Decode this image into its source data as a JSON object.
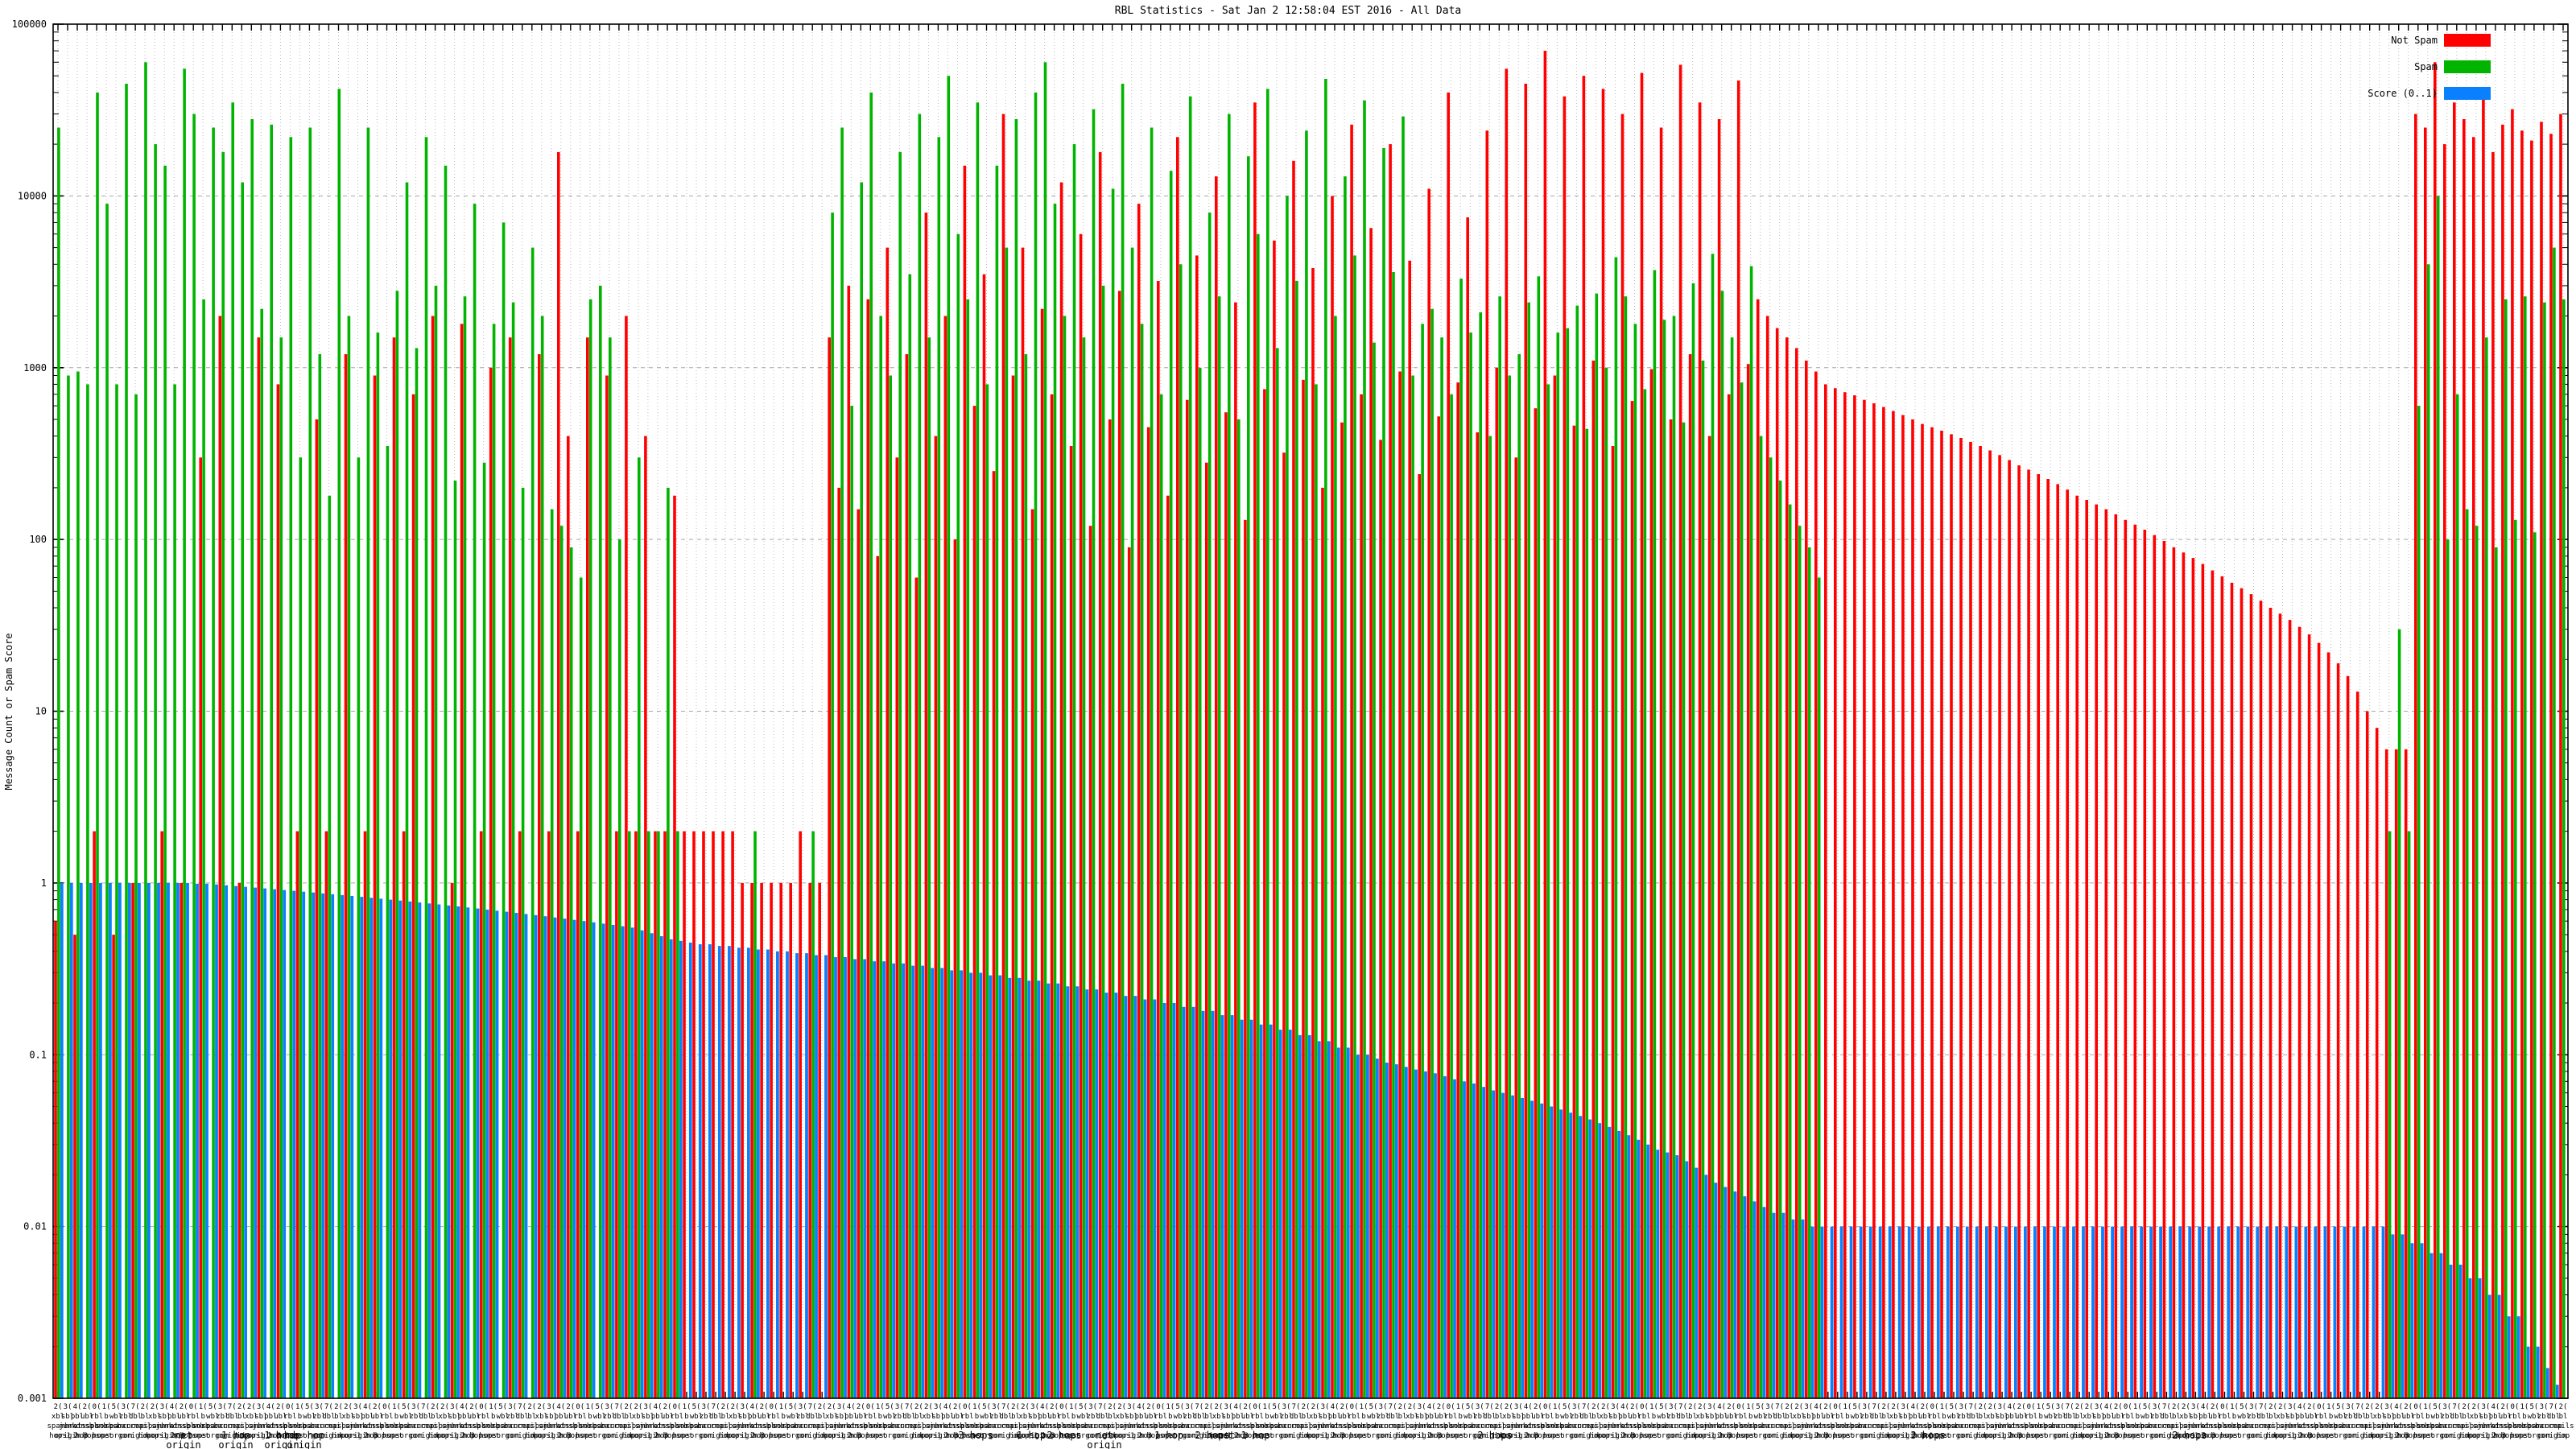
{
  "title": "RBL Statistics - Sat Jan  2 12:58:04 EST 2016 - All Data",
  "y_label": "Message Count or Spam Score",
  "legend": [
    {
      "label": "Not Spam",
      "color": "#ff0000"
    },
    {
      "label": "Spam",
      "color": "#00b400"
    },
    {
      "label": "Score (0..1)",
      "color": "#0a80ff"
    }
  ],
  "colors": {
    "not_spam": "#ff0000",
    "spam": "#00b400",
    "score": "#0a80ff",
    "grid_v": "#bcbcbc",
    "grid_h": "#a8a8a8",
    "border": "#000000"
  },
  "chart_data": {
    "type": "bar",
    "log_scale": true,
    "ylim": [
      0.001,
      100000
    ],
    "series_names": [
      "Not Spam",
      "Spam",
      "Score (0..1)"
    ],
    "y_ticks": [
      {
        "v": 100000,
        "t": "100000"
      },
      {
        "v": 10000,
        "t": "10000"
      },
      {
        "v": 1000,
        "t": "1000"
      },
      {
        "v": 100,
        "t": "100"
      },
      {
        "v": 10,
        "t": "10"
      },
      {
        "v": 1,
        "t": "1"
      },
      {
        "v": 0.1,
        "t": "0.1"
      },
      {
        "v": 0.01,
        "t": "0.01"
      },
      {
        "v": 0.001,
        "t": "0.001"
      }
    ],
    "clusters": [
      [
        0.6,
        25000,
        1
      ],
      [
        0,
        900,
        1
      ],
      [
        0.5,
        950,
        1
      ],
      [
        0,
        800,
        1
      ],
      [
        2,
        40000,
        1
      ],
      [
        0,
        9000,
        1
      ],
      [
        0.5,
        800,
        1
      ],
      [
        0,
        45000,
        1
      ],
      [
        1,
        700,
        1
      ],
      [
        0,
        60000,
        1
      ],
      [
        0,
        20000,
        1
      ],
      [
        2,
        15000,
        1
      ],
      [
        0,
        800,
        1
      ],
      [
        1,
        55000,
        1
      ],
      [
        0,
        30000,
        0.99
      ],
      [
        300,
        2500,
        0.99
      ],
      [
        0,
        25000,
        0.98
      ],
      [
        2000,
        18000,
        0.97
      ],
      [
        0,
        35000,
        0.96
      ],
      [
        1,
        12000,
        0.95
      ],
      [
        0,
        28000,
        0.94
      ],
      [
        1500,
        2200,
        0.93
      ],
      [
        0,
        26000,
        0.92
      ],
      [
        800,
        1500,
        0.91
      ],
      [
        0,
        22000,
        0.9
      ],
      [
        2,
        300,
        0.89
      ],
      [
        0,
        25000,
        0.88
      ],
      [
        500,
        1200,
        0.87
      ],
      [
        2,
        180,
        0.86
      ],
      [
        0,
        42000,
        0.85
      ],
      [
        1200,
        2000,
        0.84
      ],
      [
        0,
        300,
        0.83
      ],
      [
        2,
        25000,
        0.82
      ],
      [
        900,
        1600,
        0.81
      ],
      [
        0,
        350,
        0.8
      ],
      [
        1500,
        2800,
        0.79
      ],
      [
        2,
        12000,
        0.78
      ],
      [
        700,
        1300,
        0.77
      ],
      [
        0,
        22000,
        0.76
      ],
      [
        2000,
        3000,
        0.75
      ],
      [
        0,
        15000,
        0.74
      ],
      [
        1,
        220,
        0.73
      ],
      [
        1800,
        2600,
        0.72
      ],
      [
        0,
        9000,
        0.71
      ],
      [
        2,
        280,
        0.7
      ],
      [
        1000,
        1800,
        0.69
      ],
      [
        0,
        7000,
        0.68
      ],
      [
        1500,
        2400,
        0.67
      ],
      [
        2,
        200,
        0.66
      ],
      [
        0,
        5000,
        0.65
      ],
      [
        1200,
        2000,
        0.64
      ],
      [
        2,
        150,
        0.63
      ],
      [
        18000,
        120,
        0.62
      ],
      [
        400,
        90,
        0.61
      ],
      [
        2,
        60,
        0.6
      ],
      [
        1500,
        2500,
        0.59
      ],
      [
        0,
        3000,
        0.58
      ],
      [
        900,
        1500,
        0.57
      ],
      [
        2,
        100,
        0.56
      ],
      [
        2000,
        2,
        0.55
      ],
      [
        2,
        300,
        0.53
      ],
      [
        400,
        2,
        0.51
      ],
      [
        2,
        2,
        0.49
      ],
      [
        2,
        200,
        0.47
      ],
      [
        180,
        2,
        0.46
      ],
      [
        2,
        0,
        0.45
      ],
      [
        2,
        0,
        0.44
      ],
      [
        2,
        0,
        0.44
      ],
      [
        2,
        0,
        0.43
      ],
      [
        2,
        0,
        0.43
      ],
      [
        2,
        0,
        0.42
      ],
      [
        1,
        0,
        0.42
      ],
      [
        1,
        2,
        0.41
      ],
      [
        1,
        0,
        0.41
      ],
      [
        1,
        0,
        0.4
      ],
      [
        1,
        0,
        0.4
      ],
      [
        1,
        0,
        0.39
      ],
      [
        2,
        0,
        0.39
      ],
      [
        1,
        2,
        0.38
      ],
      [
        1,
        0,
        0.38
      ],
      [
        1500,
        8000,
        0.37
      ],
      [
        200,
        25000,
        0.37
      ],
      [
        3000,
        600,
        0.36
      ],
      [
        150,
        12000,
        0.36
      ],
      [
        2500,
        40000,
        0.35
      ],
      [
        80,
        2000,
        0.35
      ],
      [
        5000,
        900,
        0.34
      ],
      [
        300,
        18000,
        0.34
      ],
      [
        1200,
        3500,
        0.33
      ],
      [
        60,
        30000,
        0.33
      ],
      [
        8000,
        1500,
        0.32
      ],
      [
        400,
        22000,
        0.32
      ],
      [
        2000,
        50000,
        0.31
      ],
      [
        100,
        6000,
        0.31
      ],
      [
        15000,
        2500,
        0.3
      ],
      [
        600,
        35000,
        0.3
      ],
      [
        3500,
        800,
        0.29
      ],
      [
        250,
        15000,
        0.29
      ],
      [
        30000,
        5000,
        0.28
      ],
      [
        900,
        28000,
        0.28
      ],
      [
        5000,
        1200,
        0.27
      ],
      [
        150,
        40000,
        0.27
      ],
      [
        2200,
        60000,
        0.26
      ],
      [
        700,
        9000,
        0.26
      ],
      [
        12000,
        2000,
        0.25
      ],
      [
        350,
        20000,
        0.25
      ],
      [
        6000,
        1500,
        0.24
      ],
      [
        120,
        32000,
        0.24
      ],
      [
        18000,
        3000,
        0.23
      ],
      [
        500,
        11000,
        0.23
      ],
      [
        2800,
        45000,
        0.22
      ],
      [
        90,
        5000,
        0.22
      ],
      [
        9000,
        1800,
        0.21
      ],
      [
        450,
        25000,
        0.21
      ],
      [
        3200,
        700,
        0.2
      ],
      [
        180,
        14000,
        0.2
      ],
      [
        22000,
        4000,
        0.19
      ],
      [
        650,
        38000,
        0.19
      ],
      [
        4500,
        1000,
        0.18
      ],
      [
        280,
        8000,
        0.18
      ],
      [
        13000,
        2600,
        0.17
      ],
      [
        550,
        30000,
        0.17
      ],
      [
        2400,
        500,
        0.16
      ],
      [
        130,
        17000,
        0.16
      ],
      [
        35000,
        6000,
        0.15
      ],
      [
        750,
        42000,
        0.15
      ],
      [
        5500,
        1300,
        0.14
      ],
      [
        320,
        10000,
        0.14
      ],
      [
        16000,
        3200,
        0.13
      ],
      [
        850,
        24000,
        0.13
      ],
      [
        3800,
        800,
        0.12
      ],
      [
        200,
        48000,
        0.12
      ],
      [
        10000,
        2000,
        0.11
      ],
      [
        480,
        13000,
        0.11
      ],
      [
        26000,
        4500,
        0.1
      ],
      [
        700,
        36000,
        0.1
      ],
      [
        6500,
        1400,
        0.095
      ],
      [
        380,
        19000,
        0.09
      ],
      [
        20000,
        3600,
        0.088
      ],
      [
        950,
        29000,
        0.085
      ],
      [
        4200,
        900,
        0.082
      ],
      [
        240,
        1800,
        0.08
      ],
      [
        11000,
        2200,
        0.078
      ],
      [
        520,
        1500,
        0.075
      ],
      [
        40000,
        700,
        0.072
      ],
      [
        820,
        3300,
        0.07
      ],
      [
        7500,
        1600,
        0.068
      ],
      [
        420,
        2100,
        0.065
      ],
      [
        24000,
        400,
        0.062
      ],
      [
        1000,
        2600,
        0.06
      ],
      [
        55000,
        900,
        0.058
      ],
      [
        300,
        1200,
        0.056
      ],
      [
        45000,
        2400,
        0.054
      ],
      [
        580,
        3400,
        0.052
      ],
      [
        70000,
        800,
        0.05
      ],
      [
        900,
        1600,
        0.048
      ],
      [
        38000,
        1700,
        0.046
      ],
      [
        460,
        2300,
        0.044
      ],
      [
        50000,
        440,
        0.042
      ],
      [
        1100,
        2700,
        0.04
      ],
      [
        42000,
        1000,
        0.038
      ],
      [
        350,
        4400,
        0.036
      ],
      [
        30000,
        2600,
        0.034
      ],
      [
        640,
        1800,
        0.032
      ],
      [
        52000,
        750,
        0.03
      ],
      [
        980,
        3700,
        0.028
      ],
      [
        25000,
        1900,
        0.027
      ],
      [
        500,
        2000,
        0.026
      ],
      [
        58000,
        480,
        0.024
      ],
      [
        1200,
        3100,
        0.022
      ],
      [
        35000,
        1100,
        0.02
      ],
      [
        400,
        4600,
        0.018
      ],
      [
        28000,
        2800,
        0.017
      ],
      [
        700,
        1500,
        0.016
      ],
      [
        47000,
        820,
        0.015
      ],
      [
        1050,
        3900,
        0.014
      ],
      [
        2500,
        400,
        0.013
      ],
      [
        2000,
        300,
        0.012
      ],
      [
        1700,
        220,
        0.012
      ],
      [
        1500,
        160,
        0.011
      ],
      [
        1300,
        120,
        0.011
      ],
      [
        1100,
        90,
        0.01
      ],
      [
        950,
        60,
        0.01
      ],
      [
        800,
        0,
        0.01
      ],
      [
        760,
        0,
        0.01
      ],
      [
        720,
        0,
        0.01
      ],
      [
        690,
        0,
        0.01
      ],
      [
        650,
        0,
        0.01
      ],
      [
        620,
        0,
        0.01
      ],
      [
        590,
        0,
        0.01
      ],
      [
        560,
        0,
        0.01
      ],
      [
        530,
        0,
        0.01
      ],
      [
        500,
        0,
        0.01
      ],
      [
        470,
        0,
        0.01
      ],
      [
        450,
        0,
        0.01
      ],
      [
        430,
        0,
        0.01
      ],
      [
        410,
        0,
        0.01
      ],
      [
        390,
        0,
        0.01
      ],
      [
        370,
        0,
        0.01
      ],
      [
        350,
        0,
        0.01
      ],
      [
        330,
        0,
        0.01
      ],
      [
        310,
        0,
        0.01
      ],
      [
        290,
        0,
        0.01
      ],
      [
        270,
        0,
        0.01
      ],
      [
        255,
        0,
        0.01
      ],
      [
        240,
        0,
        0.01
      ],
      [
        225,
        0,
        0.01
      ],
      [
        210,
        0,
        0.01
      ],
      [
        195,
        0,
        0.01
      ],
      [
        180,
        0,
        0.01
      ],
      [
        170,
        0,
        0.01
      ],
      [
        160,
        0,
        0.01
      ],
      [
        150,
        0,
        0.01
      ],
      [
        140,
        0,
        0.01
      ],
      [
        130,
        0,
        0.01
      ],
      [
        122,
        0,
        0.01
      ],
      [
        114,
        0,
        0.01
      ],
      [
        106,
        0,
        0.01
      ],
      [
        98,
        0,
        0.01
      ],
      [
        90,
        0,
        0.01
      ],
      [
        84,
        0,
        0.01
      ],
      [
        78,
        0,
        0.01
      ],
      [
        72,
        0,
        0.01
      ],
      [
        66,
        0,
        0.01
      ],
      [
        61,
        0,
        0.01
      ],
      [
        56,
        0,
        0.01
      ],
      [
        52,
        0,
        0.01
      ],
      [
        48,
        0,
        0.01
      ],
      [
        44,
        0,
        0.01
      ],
      [
        40,
        0,
        0.01
      ],
      [
        37,
        0,
        0.01
      ],
      [
        34,
        0,
        0.01
      ],
      [
        31,
        0,
        0.01
      ],
      [
        28,
        0,
        0.01
      ],
      [
        25,
        0,
        0.01
      ],
      [
        22,
        0,
        0.01
      ],
      [
        19,
        0,
        0.01
      ],
      [
        16,
        0,
        0.01
      ],
      [
        13,
        0,
        0.01
      ],
      [
        10,
        0,
        0.01
      ],
      [
        8,
        0,
        0.01
      ],
      [
        6,
        2,
        0.009
      ],
      [
        6,
        30,
        0.009
      ],
      [
        6,
        2,
        0.008
      ],
      [
        30000,
        600,
        0.008
      ],
      [
        25000,
        4000,
        0.007
      ],
      [
        60000,
        10000,
        0.007
      ],
      [
        20000,
        100,
        0.006
      ],
      [
        35000,
        700,
        0.006
      ],
      [
        28000,
        150,
        0.005
      ],
      [
        22000,
        120,
        0.005
      ],
      [
        40000,
        1500,
        0.004
      ],
      [
        18000,
        90,
        0.004
      ],
      [
        26000,
        2500,
        0.003
      ],
      [
        32000,
        130,
        0.003
      ],
      [
        24000,
        2600,
        0.002
      ],
      [
        21000,
        110,
        0.002
      ],
      [
        27000,
        2400,
        0.0015
      ],
      [
        23000,
        5000,
        0.0012
      ],
      [
        30000,
        2500,
        0.001
      ]
    ]
  },
  "x_axis": {
    "labels_illegible": true,
    "label_row_pools": [
      [
        "2(",
        "3(",
        "4(",
        "2(",
        "0(",
        "1(",
        "5(",
        "3(",
        "7(",
        "2("
      ],
      [
        "zbl",
        "dbl",
        "bl",
        "xbl",
        "sbl",
        "pbl",
        "ubl",
        "rbl",
        "b",
        "wbl"
      ],
      [
        "spamb",
        "sorbs",
        "spamc",
        "barr",
        "ucep",
        "mails",
        "spamh",
        "junk",
        "rats",
        "dnsbl"
      ],
      [
        "origin",
        "1 hop",
        "2 hops",
        "3 hops",
        "net",
        "org",
        "com",
        "origin",
        "hop",
        "hops"
      ]
    ],
    "overflow_labels": [
      {
        "l1": "net",
        "l2": "origin",
        "x": 228
      },
      {
        "l1": "1 hop",
        "l2": "origin",
        "x": 293
      },
      {
        "l1": "1 home",
        "l2": "origin",
        "x": 350
      },
      {
        "l1": "hdp hop",
        "l2": "origin",
        "x": 378
      },
      {
        "l1": "3 hops",
        "l2": "",
        "x": 1212
      },
      {
        "l1": "1 hop",
        "l2": "",
        "x": 1281
      },
      {
        "l1": "2 hops",
        "l2": "",
        "x": 1322
      },
      {
        "l1": "net",
        "l2": "origin",
        "x": 1372
      },
      {
        "l1": "1 hop",
        "l2": "",
        "x": 1452
      },
      {
        "l1": "2 hops",
        "l2": "",
        "x": 1506
      },
      {
        "l1": "net 1 hop",
        "l2": "",
        "x": 1545
      },
      {
        "l1": "2 hops",
        "l2": "",
        "x": 1857
      },
      {
        "l1": "3 hops",
        "l2": "",
        "x": 2395
      },
      {
        "l1": "2 hops",
        "l2": "",
        "x": 2720
      }
    ]
  }
}
